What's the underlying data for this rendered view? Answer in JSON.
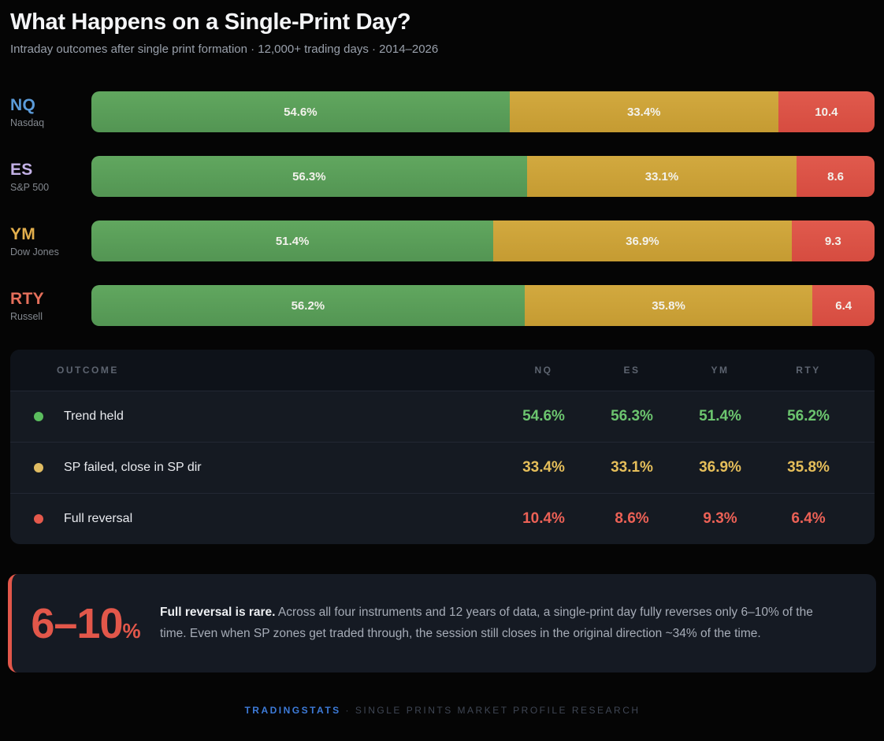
{
  "header": {
    "title": "What Happens on a Single-Print Day?",
    "subtitle": "Intraday outcomes after single print formation · 12,000+ trading days · 2014–2026"
  },
  "chart_data": {
    "type": "bar",
    "stacked": true,
    "orientation": "horizontal",
    "unit": "%",
    "categories": [
      "NQ",
      "ES",
      "YM",
      "RTY"
    ],
    "category_names": [
      "Nasdaq",
      "S&P 500",
      "Dow Jones",
      "Russell"
    ],
    "category_colors": [
      "#5b9bd9",
      "#c3b1e6",
      "#e3af4d",
      "#e56f5b"
    ],
    "series": [
      {
        "name": "Trend held",
        "color": "#58a157",
        "values": [
          54.6,
          56.3,
          51.4,
          56.2
        ]
      },
      {
        "name": "SP failed, close in SP dir",
        "color": "#cda43c",
        "values": [
          33.4,
          33.1,
          36.9,
          35.8
        ]
      },
      {
        "name": "Full reversal",
        "color": "#dc5347",
        "values": [
          10.4,
          8.6,
          9.3,
          6.4
        ]
      }
    ],
    "bar_labels": [
      [
        "54.6%",
        "33.4%",
        "10.4"
      ],
      [
        "56.3%",
        "33.1%",
        "8.6"
      ],
      [
        "51.4%",
        "36.9%",
        "9.3"
      ],
      [
        "56.2%",
        "35.8%",
        "6.4"
      ]
    ]
  },
  "table": {
    "headers": [
      "OUTCOME",
      "NQ",
      "ES",
      "YM",
      "RTY"
    ],
    "rows": [
      {
        "label": "Trend held",
        "dot_color": "#5bbd5e",
        "value_color": "#6cc56f",
        "values": [
          "54.6%",
          "56.3%",
          "51.4%",
          "56.2%"
        ]
      },
      {
        "label": "SP failed, close in SP dir",
        "dot_color": "#e0bc62",
        "value_color": "#e5be5a",
        "values": [
          "33.4%",
          "33.1%",
          "36.9%",
          "35.8%"
        ]
      },
      {
        "label": "Full reversal",
        "dot_color": "#e4594c",
        "value_color": "#ec6156",
        "values": [
          "10.4%",
          "8.6%",
          "9.3%",
          "6.4%"
        ]
      }
    ]
  },
  "callout": {
    "stat": "6–10",
    "stat_unit": "%",
    "lead": "Full reversal is rare.",
    "text": " Across all four instruments and 12 years of data, a single-print day fully reverses only 6–10% of the time. Even when SP zones get traded through, the session still closes in the original direction ~34% of the time."
  },
  "footer": {
    "brand": "TRADINGSTATS",
    "separator": "·",
    "tagline": "SINGLE PRINTS MARKET PROFILE RESEARCH"
  }
}
